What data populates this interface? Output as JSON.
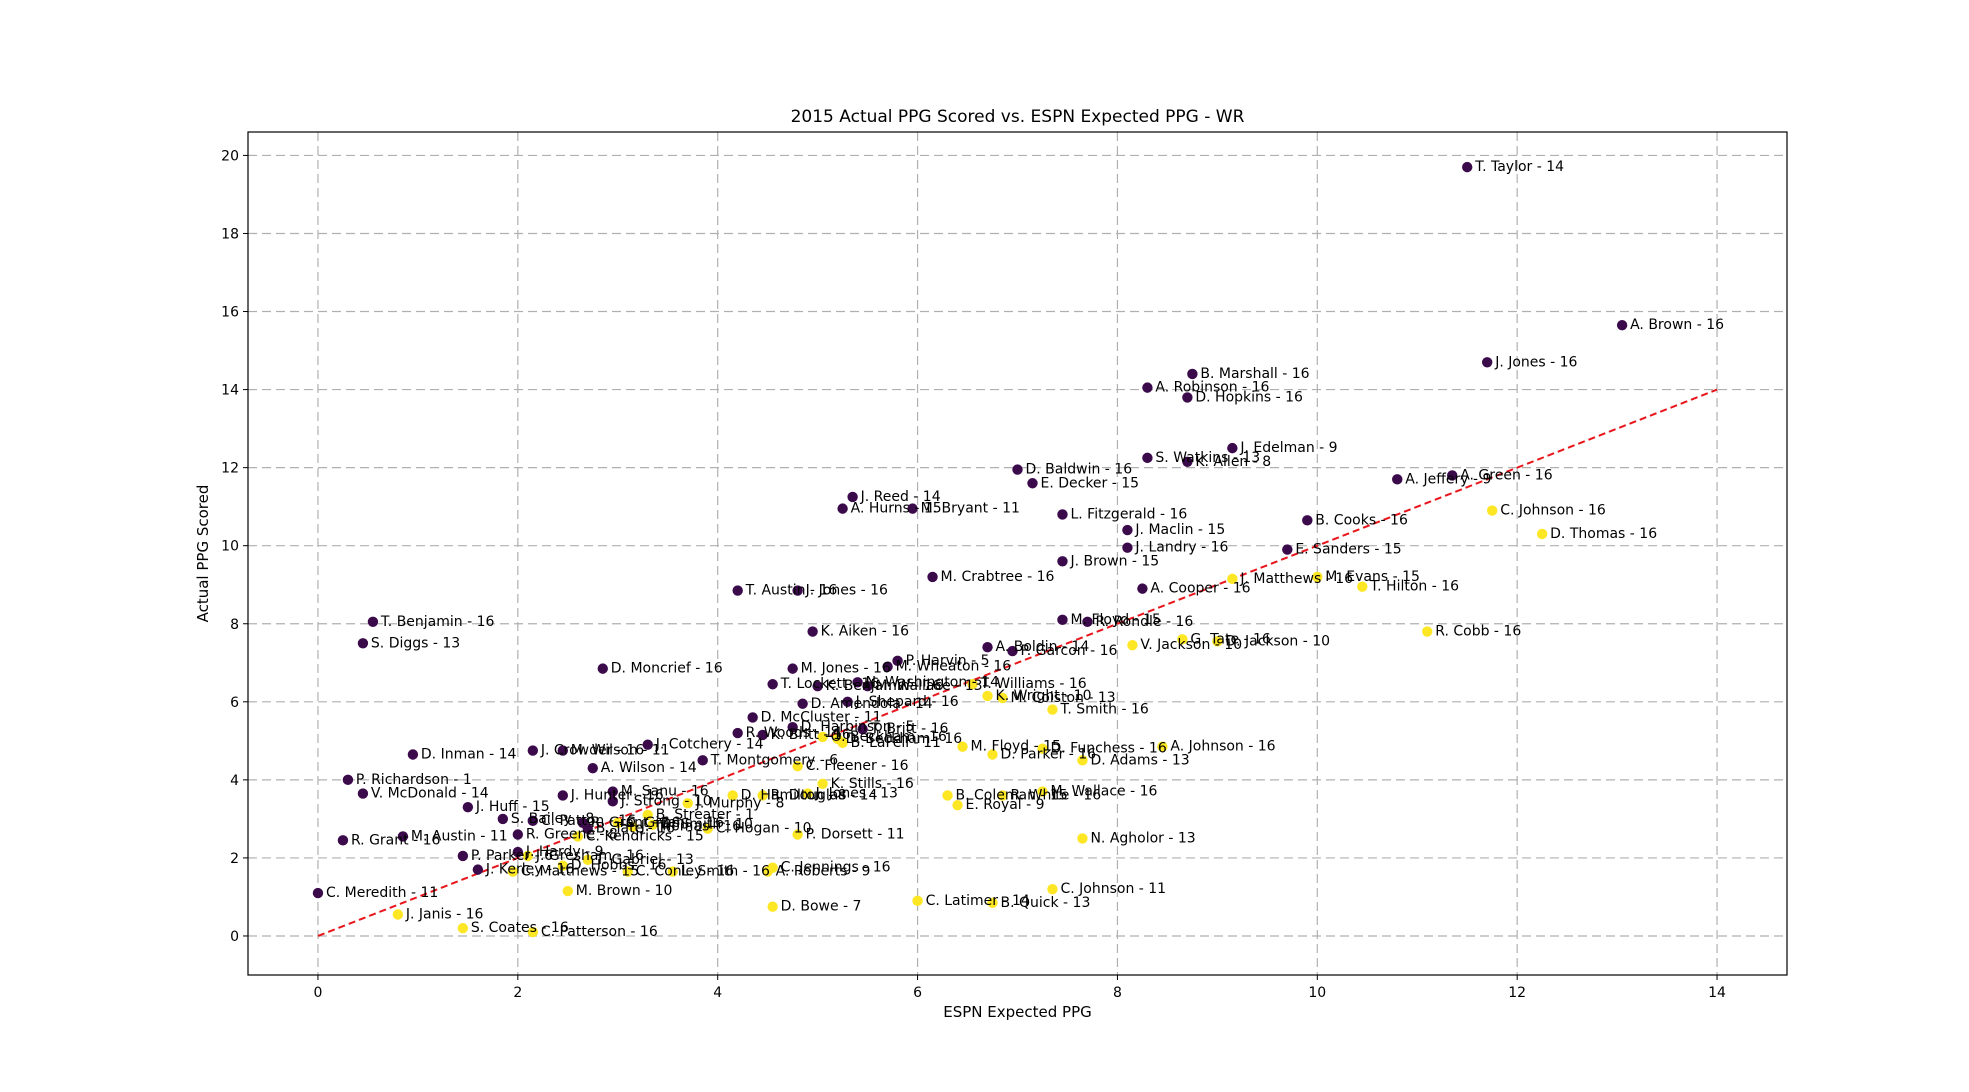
{
  "chart_data": {
    "type": "scatter",
    "title": "2015 Actual PPG Scored vs. ESPN Expected PPG - WR",
    "xlabel": "ESPN Expected PPG",
    "ylabel": "Actual PPG Scored",
    "xlim": [
      -0.7,
      14.7
    ],
    "ylim": [
      -1.0,
      20.6
    ],
    "xticks": [
      0,
      2,
      4,
      6,
      8,
      10,
      12,
      14
    ],
    "yticks": [
      0,
      2,
      4,
      6,
      8,
      10,
      12,
      14,
      16,
      18,
      20
    ],
    "grid": true,
    "reference_line": {
      "x": [
        0,
        14
      ],
      "y": [
        0,
        14
      ],
      "color": "#e8151b",
      "style": "dashed"
    },
    "colors": {
      "above": "#3b0a4a",
      "below": "#fde725"
    },
    "points": [
      {
        "x": 11.5,
        "y": 19.7,
        "label": "T. Taylor - 14",
        "above": true
      },
      {
        "x": 13.05,
        "y": 15.65,
        "label": "A. Brown - 16",
        "above": true
      },
      {
        "x": 11.7,
        "y": 14.7,
        "label": "J. Jones - 16",
        "above": true
      },
      {
        "x": 8.75,
        "y": 14.4,
        "label": "B. Marshall - 16",
        "above": true
      },
      {
        "x": 8.3,
        "y": 14.05,
        "label": "A. Robinson - 16",
        "above": true
      },
      {
        "x": 8.7,
        "y": 13.8,
        "label": "D. Hopkins - 16",
        "above": true
      },
      {
        "x": 9.15,
        "y": 12.5,
        "label": "J. Edelman - 9",
        "above": true
      },
      {
        "x": 8.3,
        "y": 12.25,
        "label": "S. Watkins - 13",
        "above": true
      },
      {
        "x": 8.7,
        "y": 12.15,
        "label": "K. Allen - 8",
        "above": true
      },
      {
        "x": 7.0,
        "y": 11.95,
        "label": "D. Baldwin - 16",
        "above": true
      },
      {
        "x": 7.15,
        "y": 11.6,
        "label": "E. Decker - 15",
        "above": true
      },
      {
        "x": 10.8,
        "y": 11.7,
        "label": "A. Jeffery - 9",
        "above": true
      },
      {
        "x": 11.35,
        "y": 11.8,
        "label": "A. Green - 16",
        "above": true
      },
      {
        "x": 5.35,
        "y": 11.25,
        "label": "J. Reed - 14",
        "above": true
      },
      {
        "x": 5.25,
        "y": 10.95,
        "label": "A. Hurns - 15",
        "above": true
      },
      {
        "x": 5.95,
        "y": 10.95,
        "label": "M. Bryant - 11",
        "above": true
      },
      {
        "x": 11.75,
        "y": 10.9,
        "label": "C. Johnson - 16",
        "above": false
      },
      {
        "x": 7.45,
        "y": 10.8,
        "label": "L. Fitzgerald - 16",
        "above": true
      },
      {
        "x": 9.9,
        "y": 10.65,
        "label": "B. Cooks - 16",
        "above": true
      },
      {
        "x": 8.1,
        "y": 10.4,
        "label": "J. Maclin - 15",
        "above": true
      },
      {
        "x": 12.25,
        "y": 10.3,
        "label": "D. Thomas - 16",
        "above": false
      },
      {
        "x": 8.1,
        "y": 9.95,
        "label": "J. Landry - 16",
        "above": true
      },
      {
        "x": 9.7,
        "y": 9.9,
        "label": "E. Sanders - 15",
        "above": true
      },
      {
        "x": 7.45,
        "y": 9.6,
        "label": "J. Brown - 15",
        "above": true
      },
      {
        "x": 6.15,
        "y": 9.2,
        "label": "M. Crabtree - 16",
        "above": true
      },
      {
        "x": 9.15,
        "y": 9.15,
        "label": "J. Matthews - 16",
        "above": false
      },
      {
        "x": 10.0,
        "y": 9.2,
        "label": "M. Evans - 15",
        "above": false
      },
      {
        "x": 10.45,
        "y": 8.95,
        "label": "T. Hilton - 16",
        "above": false
      },
      {
        "x": 4.2,
        "y": 8.85,
        "label": "T. Austin - 16",
        "above": true
      },
      {
        "x": 4.8,
        "y": 8.85,
        "label": "J. Jones - 16",
        "above": true
      },
      {
        "x": 8.25,
        "y": 8.9,
        "label": "A. Cooper - 16",
        "above": true
      },
      {
        "x": 0.55,
        "y": 8.05,
        "label": "T. Benjamin - 16",
        "above": true
      },
      {
        "x": 7.45,
        "y": 8.1,
        "label": "M. Floyd - 15",
        "above": true
      },
      {
        "x": 7.7,
        "y": 8.05,
        "label": "R. Rondle - 16",
        "above": true
      },
      {
        "x": 11.1,
        "y": 7.8,
        "label": "R. Cobb - 16",
        "above": false
      },
      {
        "x": 4.95,
        "y": 7.8,
        "label": "K. Aiken - 16",
        "above": true
      },
      {
        "x": 0.45,
        "y": 7.5,
        "label": "S. Diggs - 13",
        "above": true
      },
      {
        "x": 8.65,
        "y": 7.6,
        "label": "G. Tate - 16",
        "above": false
      },
      {
        "x": 9.0,
        "y": 7.55,
        "label": "D. Jackson - 10",
        "above": false
      },
      {
        "x": 8.15,
        "y": 7.45,
        "label": "V. Jackson - 10",
        "above": false
      },
      {
        "x": 6.7,
        "y": 7.4,
        "label": "A. Boldin - 14",
        "above": true
      },
      {
        "x": 6.95,
        "y": 7.3,
        "label": "P. Garcon - 16",
        "above": true
      },
      {
        "x": 5.8,
        "y": 7.05,
        "label": "P. Harvin - 5",
        "above": true
      },
      {
        "x": 2.85,
        "y": 6.85,
        "label": "D. Moncrief - 16",
        "above": true
      },
      {
        "x": 4.75,
        "y": 6.85,
        "label": "M. Jones - 16",
        "above": true
      },
      {
        "x": 5.7,
        "y": 6.9,
        "label": "M. Wheaton - 16",
        "above": true
      },
      {
        "x": 5.4,
        "y": 6.5,
        "label": "N. Washington - 14",
        "above": true
      },
      {
        "x": 6.55,
        "y": 6.45,
        "label": "T. Williams - 16",
        "above": false
      },
      {
        "x": 4.55,
        "y": 6.45,
        "label": "T. Lockett - 16",
        "above": true
      },
      {
        "x": 5.0,
        "y": 6.4,
        "label": "K. Benjamin - 16",
        "above": true
      },
      {
        "x": 5.5,
        "y": 6.4,
        "label": "M. Wallace - 13",
        "above": true
      },
      {
        "x": 6.7,
        "y": 6.15,
        "label": "K. Wright - 10",
        "above": false
      },
      {
        "x": 6.85,
        "y": 6.1,
        "label": "M. Colston - 13",
        "above": false
      },
      {
        "x": 4.85,
        "y": 5.95,
        "label": "D. Amendola - 14",
        "above": true
      },
      {
        "x": 5.3,
        "y": 6.0,
        "label": "J. Shepard - 16",
        "above": true
      },
      {
        "x": 7.35,
        "y": 5.8,
        "label": "T. Smith - 16",
        "above": false
      },
      {
        "x": 4.35,
        "y": 5.6,
        "label": "D. McCluster - 11",
        "above": true
      },
      {
        "x": 4.75,
        "y": 5.35,
        "label": "D. Harbinson - 5",
        "above": true
      },
      {
        "x": 5.45,
        "y": 5.3,
        "label": "T. Britt - 16",
        "above": true
      },
      {
        "x": 4.2,
        "y": 5.2,
        "label": "R. Woods - 14",
        "above": true
      },
      {
        "x": 4.45,
        "y": 5.15,
        "label": "K. Britt - 16",
        "above": true
      },
      {
        "x": 5.05,
        "y": 5.1,
        "label": "O. Beckham - 16",
        "above": false
      },
      {
        "x": 5.2,
        "y": 5.05,
        "label": "D. Beckham - 16",
        "above": false
      },
      {
        "x": 5.25,
        "y": 4.95,
        "label": "B. LaFell - 11",
        "above": false
      },
      {
        "x": 3.3,
        "y": 4.9,
        "label": "J. Cotchery - 14",
        "above": true
      },
      {
        "x": 6.45,
        "y": 4.85,
        "label": "M. Floyd - 15",
        "above": false
      },
      {
        "x": 6.75,
        "y": 4.65,
        "label": "D. Parker - 16",
        "above": false
      },
      {
        "x": 7.25,
        "y": 4.8,
        "label": "D. Funchess - 16",
        "above": false
      },
      {
        "x": 8.45,
        "y": 4.85,
        "label": "A. Johnson - 16",
        "above": false
      },
      {
        "x": 2.15,
        "y": 4.75,
        "label": "J. Crowder - 16",
        "above": true
      },
      {
        "x": 2.45,
        "y": 4.75,
        "label": "M. Wilson - 11",
        "above": true
      },
      {
        "x": 0.95,
        "y": 4.65,
        "label": "D. Inman - 14",
        "above": true
      },
      {
        "x": 7.65,
        "y": 4.5,
        "label": "D. Adams - 13",
        "above": false
      },
      {
        "x": 3.85,
        "y": 4.5,
        "label": "T. Montgomery - 6",
        "above": true
      },
      {
        "x": 4.8,
        "y": 4.35,
        "label": "C. Fleener - 16",
        "above": false
      },
      {
        "x": 2.75,
        "y": 4.3,
        "label": "A. Wilson - 14",
        "above": true
      },
      {
        "x": 0.3,
        "y": 4.0,
        "label": "P. Richardson - 1",
        "above": true
      },
      {
        "x": 5.05,
        "y": 3.9,
        "label": "K. Stills - 16",
        "above": false
      },
      {
        "x": 0.45,
        "y": 3.65,
        "label": "V. McDonald - 14",
        "above": true
      },
      {
        "x": 2.95,
        "y": 3.7,
        "label": "M. Sanu - 16",
        "above": true
      },
      {
        "x": 7.25,
        "y": 3.7,
        "label": "M. Wallace - 16",
        "above": false
      },
      {
        "x": 2.45,
        "y": 3.6,
        "label": "J. Hunter - 16",
        "above": true
      },
      {
        "x": 4.15,
        "y": 3.6,
        "label": "D. Hamilton - 8",
        "above": false
      },
      {
        "x": 4.45,
        "y": 3.6,
        "label": "R. Douglas - 14",
        "above": false
      },
      {
        "x": 4.9,
        "y": 3.65,
        "label": "J. Jones - 13",
        "above": false
      },
      {
        "x": 6.3,
        "y": 3.6,
        "label": "B. Coleman - 15",
        "above": false
      },
      {
        "x": 6.85,
        "y": 3.6,
        "label": "R. White - 16",
        "above": false
      },
      {
        "x": 2.95,
        "y": 3.45,
        "label": "J. Strong - 10",
        "above": true
      },
      {
        "x": 3.7,
        "y": 3.4,
        "label": "J. Murphy - 8",
        "above": false
      },
      {
        "x": 6.4,
        "y": 3.35,
        "label": "E. Royal - 9",
        "above": false
      },
      {
        "x": 1.5,
        "y": 3.3,
        "label": "J. Huff - 15",
        "above": true
      },
      {
        "x": 3.3,
        "y": 3.1,
        "label": "B. Streater - 1",
        "above": false
      },
      {
        "x": 1.85,
        "y": 3.0,
        "label": "S. Bailey - 8",
        "above": true
      },
      {
        "x": 2.15,
        "y": 2.95,
        "label": "C. Patton - 16",
        "above": true
      },
      {
        "x": 2.65,
        "y": 2.9,
        "label": "R. Grant - 16",
        "above": true
      },
      {
        "x": 3.0,
        "y": 2.9,
        "label": "C. Givens - 16",
        "above": false
      },
      {
        "x": 3.35,
        "y": 2.85,
        "label": "D. Smith - 10",
        "above": false
      },
      {
        "x": 2.7,
        "y": 2.75,
        "label": "B. Tate - 16",
        "above": true
      },
      {
        "x": 3.15,
        "y": 2.8,
        "label": "J. Thomas - 16",
        "above": false
      },
      {
        "x": 3.9,
        "y": 2.75,
        "label": "C. Hogan - 10",
        "above": false
      },
      {
        "x": 4.8,
        "y": 2.6,
        "label": "P. Dorsett - 11",
        "above": false
      },
      {
        "x": 2.0,
        "y": 2.6,
        "label": "R. Greene - 8",
        "above": true
      },
      {
        "x": 2.6,
        "y": 2.55,
        "label": "C. Kendricks - 15",
        "above": false
      },
      {
        "x": 0.25,
        "y": 2.45,
        "label": "R. Grant - 16",
        "above": true
      },
      {
        "x": 0.85,
        "y": 2.55,
        "label": "M. Austin - 11",
        "above": true
      },
      {
        "x": 7.65,
        "y": 2.5,
        "label": "N. Agholor - 13",
        "above": false
      },
      {
        "x": 1.45,
        "y": 2.05,
        "label": "P. Parker - 6",
        "above": true
      },
      {
        "x": 2.0,
        "y": 2.15,
        "label": "J. Hardy - 9",
        "above": true
      },
      {
        "x": 2.1,
        "y": 2.05,
        "label": "J. Gresham - 16",
        "above": false
      },
      {
        "x": 2.7,
        "y": 1.95,
        "label": "T. Gabriel - 13",
        "above": false
      },
      {
        "x": 2.45,
        "y": 1.8,
        "label": "D. Hobbs - 16",
        "above": false
      },
      {
        "x": 1.6,
        "y": 1.7,
        "label": "J. Kerley - 16",
        "above": true
      },
      {
        "x": 1.95,
        "y": 1.65,
        "label": "C. Matthews - 15",
        "above": false
      },
      {
        "x": 3.1,
        "y": 1.65,
        "label": "C. Conley - 16",
        "above": false
      },
      {
        "x": 3.55,
        "y": 1.65,
        "label": "L. Smith - 16",
        "above": false
      },
      {
        "x": 4.5,
        "y": 1.65,
        "label": "A. Roberts - 9",
        "above": false
      },
      {
        "x": 4.55,
        "y": 1.75,
        "label": "C. Jennings - 16",
        "above": false
      },
      {
        "x": 0.0,
        "y": 1.1,
        "label": "C. Meredith - 11",
        "above": true
      },
      {
        "x": 2.5,
        "y": 1.15,
        "label": "M. Brown - 10",
        "above": false
      },
      {
        "x": 7.35,
        "y": 1.2,
        "label": "C. Johnson - 11",
        "above": false
      },
      {
        "x": 6.0,
        "y": 0.9,
        "label": "C. Latimer - 14",
        "above": false
      },
      {
        "x": 6.75,
        "y": 0.85,
        "label": "B. Quick - 13",
        "above": false
      },
      {
        "x": 4.55,
        "y": 0.75,
        "label": "D. Bowe - 7",
        "above": false
      },
      {
        "x": 0.8,
        "y": 0.55,
        "label": "J. Janis - 16",
        "above": false
      },
      {
        "x": 1.45,
        "y": 0.2,
        "label": "S. Coates - 16",
        "above": false
      },
      {
        "x": 2.15,
        "y": 0.1,
        "label": "C. Patterson - 16",
        "above": false
      }
    ]
  }
}
